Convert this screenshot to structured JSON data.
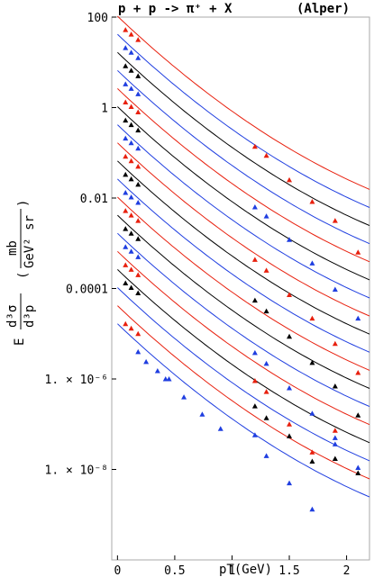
{
  "chart_data": {
    "type": "scatter",
    "title": "p + p -> π⁺ + X",
    "annotation": "(Alper)",
    "xlabel": "pT(GeV)",
    "ylabel": "E d³σ/d³p (mb/(GeV² sr))",
    "ylabel_parts": {
      "prefix": "E",
      "numerator": "d³σ",
      "denominator": "d³p",
      "unit_num": "mb",
      "unit_den": "GeV² sr"
    },
    "xlim": [
      -0.05,
      2.2
    ],
    "ylim_log10": [
      -10,
      2
    ],
    "y_scale": "log",
    "x_ticks": [
      {
        "value": 0,
        "label": "0"
      },
      {
        "value": 0.5,
        "label": "0.5"
      },
      {
        "value": 1,
        "label": "1"
      },
      {
        "value": 1.5,
        "label": "1.5"
      },
      {
        "value": 2,
        "label": "2"
      }
    ],
    "y_ticks": [
      {
        "exp": 2,
        "label": "100"
      },
      {
        "exp": 0,
        "label": "1"
      },
      {
        "exp": -2,
        "label": "0.01"
      },
      {
        "exp": -4,
        "label": "0.0001"
      },
      {
        "exp": -6,
        "label": "1. × 10⁻⁶"
      },
      {
        "exp": -8,
        "label": "1. × 10⁻⁸"
      }
    ],
    "series_colors": [
      "#e8200e",
      "#1f3ee0",
      "#000000"
    ],
    "curves": [
      {
        "color": "#e8200e",
        "y0_log10": 2.02
      },
      {
        "color": "#1f3ee0",
        "y0_log10": 1.62
      },
      {
        "color": "#000000",
        "y0_log10": 1.22
      },
      {
        "color": "#1f3ee0",
        "y0_log10": 0.82
      },
      {
        "color": "#e8200e",
        "y0_log10": 0.42
      },
      {
        "color": "#000000",
        "y0_log10": 0.02
      },
      {
        "color": "#1f3ee0",
        "y0_log10": -0.38
      },
      {
        "color": "#e8200e",
        "y0_log10": -0.78
      },
      {
        "color": "#000000",
        "y0_log10": -1.18
      },
      {
        "color": "#1f3ee0",
        "y0_log10": -1.58
      },
      {
        "color": "#e8200e",
        "y0_log10": -1.98
      },
      {
        "color": "#000000",
        "y0_log10": -2.38
      },
      {
        "color": "#1f3ee0",
        "y0_log10": -2.78
      },
      {
        "color": "#e8200e",
        "y0_log10": -3.18
      },
      {
        "color": "#000000",
        "y0_log10": -3.58
      },
      {
        "color": "#1f3ee0",
        "y0_log10": -3.98
      },
      {
        "color": "#e8200e",
        "y0_log10": -4.38
      },
      {
        "color": "#1f3ee0",
        "y0_log10": -4.78
      }
    ],
    "markers": [
      {
        "color": "#e8200e",
        "x": [
          0.07,
          0.12,
          0.18
        ],
        "log10y": [
          1.72,
          1.62,
          1.5
        ]
      },
      {
        "color": "#1f3ee0",
        "x": [
          0.07,
          0.12,
          0.18
        ],
        "log10y": [
          1.32,
          1.22,
          1.1
        ]
      },
      {
        "color": "#000000",
        "x": [
          0.07,
          0.12,
          0.18
        ],
        "log10y": [
          0.92,
          0.82,
          0.7
        ]
      },
      {
        "color": "#1f3ee0",
        "x": [
          0.07,
          0.12,
          0.18
        ],
        "log10y": [
          0.52,
          0.42,
          0.3
        ]
      },
      {
        "color": "#e8200e",
        "x": [
          0.07,
          0.12,
          0.18
        ],
        "log10y": [
          0.12,
          0.02,
          -0.1
        ]
      },
      {
        "color": "#000000",
        "x": [
          0.07,
          0.12,
          0.18
        ],
        "log10y": [
          -0.28,
          -0.38,
          -0.5
        ]
      },
      {
        "color": "#1f3ee0",
        "x": [
          0.07,
          0.12,
          0.18
        ],
        "log10y": [
          -0.68,
          -0.78,
          -0.9
        ]
      },
      {
        "color": "#e8200e",
        "x": [
          0.07,
          0.12,
          0.18
        ],
        "log10y": [
          -1.08,
          -1.18,
          -1.3
        ]
      },
      {
        "color": "#000000",
        "x": [
          0.07,
          0.12,
          0.18
        ],
        "log10y": [
          -1.48,
          -1.58,
          -1.7
        ]
      },
      {
        "color": "#1f3ee0",
        "x": [
          0.07,
          0.12,
          0.18
        ],
        "log10y": [
          -1.88,
          -1.98,
          -2.1
        ]
      },
      {
        "color": "#e8200e",
        "x": [
          0.07,
          0.12,
          0.18
        ],
        "log10y": [
          -2.28,
          -2.38,
          -2.5
        ]
      },
      {
        "color": "#000000",
        "x": [
          0.07,
          0.12,
          0.18
        ],
        "log10y": [
          -2.68,
          -2.78,
          -2.9
        ]
      },
      {
        "color": "#1f3ee0",
        "x": [
          0.07,
          0.12,
          0.18
        ],
        "log10y": [
          -3.08,
          -3.18,
          -3.3
        ]
      },
      {
        "color": "#e8200e",
        "x": [
          0.07,
          0.12,
          0.18
        ],
        "log10y": [
          -3.48,
          -3.58,
          -3.7
        ]
      },
      {
        "color": "#000000",
        "x": [
          0.07,
          0.12,
          0.18
        ],
        "log10y": [
          -3.88,
          -3.98,
          -4.1
        ]
      },
      {
        "color": "#e8200e",
        "x": [
          0.07,
          0.12,
          0.18
        ],
        "log10y": [
          -4.78,
          -4.88,
          -5.0
        ]
      },
      {
        "color": "#e8200e",
        "x": [
          1.2,
          1.3,
          1.5,
          1.7,
          1.9,
          2.1
        ],
        "log10y": [
          -0.86,
          -1.06,
          -1.6,
          -2.08,
          -2.5,
          -3.2
        ]
      },
      {
        "color": "#1f3ee0",
        "x": [
          1.2,
          1.3,
          1.5,
          1.7,
          1.9,
          2.1
        ],
        "log10y": [
          -2.2,
          -2.4,
          -2.92,
          -3.44,
          -4.02,
          -4.66
        ]
      },
      {
        "color": "#e8200e",
        "x": [
          1.2,
          1.3,
          1.5,
          1.7,
          1.9,
          2.1
        ],
        "log10y": [
          -3.36,
          -3.6,
          -4.14,
          -4.66,
          -5.22,
          -5.86
        ]
      },
      {
        "color": "#000000",
        "x": [
          1.2,
          1.3,
          1.5,
          1.7,
          1.9,
          2.1
        ],
        "log10y": [
          -4.26,
          -4.5,
          -5.06,
          -5.64,
          -6.16,
          -6.8
        ]
      },
      {
        "color": "#1f3ee0",
        "x": [
          1.2,
          1.3,
          1.5,
          1.7,
          1.9,
          2.1
        ],
        "log10y": [
          -5.42,
          -5.66,
          -6.2,
          -6.76,
          -7.3,
          -7.96
        ]
      },
      {
        "color": "#e8200e",
        "x": [
          1.2,
          1.3,
          1.5,
          1.7,
          1.9
        ],
        "log10y": [
          -6.04,
          -6.28,
          -7.0,
          -7.62,
          -7.14
        ]
      },
      {
        "color": "#000000",
        "x": [
          1.2,
          1.3,
          1.5,
          1.7,
          1.9,
          2.1
        ],
        "log10y": [
          -6.6,
          -6.86,
          -7.26,
          -7.82,
          -7.76,
          -8.08
        ]
      },
      {
        "color": "#1f3ee0",
        "x": [
          0.42,
          0.58,
          0.74,
          0.9,
          1.2,
          1.3,
          1.5,
          1.7,
          1.9
        ],
        "log10y": [
          -6.0,
          -6.4,
          -6.78,
          -7.1,
          -7.24,
          -7.7,
          -8.3,
          -8.88,
          -7.44
        ]
      },
      {
        "color": "#1f3ee0",
        "x": [
          0.18,
          0.25,
          0.35,
          0.45
        ],
        "log10y": [
          -5.4,
          -5.62,
          -5.82,
          -6.0
        ]
      }
    ]
  }
}
